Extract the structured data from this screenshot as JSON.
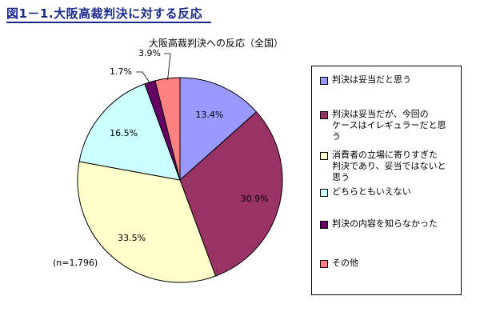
{
  "figure_title": "図1－1.大阪高裁判決に対する反応",
  "note": "(n=1,796)",
  "colors": {
    "title": "#1a2a8c",
    "slices": [
      "#9999ff",
      "#993366",
      "#ffffcc",
      "#ccffff",
      "#660066",
      "#ff8080"
    ]
  },
  "chart_data": {
    "type": "pie",
    "title": "大阪高裁判決への反応（全国）",
    "start_angle_deg": 0,
    "direction": "clockwise",
    "categories": [
      "判決は妥当だと思う",
      "判決は妥当だが、今回のケースはイレギュラーだと思う",
      "消費者の立場に寄りすぎた判決であり、妥当ではないと思う",
      "どちらともいえない",
      "判決の内容を知らなかった",
      "その他"
    ],
    "values": [
      13.4,
      30.9,
      33.5,
      16.5,
      1.7,
      3.9
    ],
    "data_labels": [
      "13.4%",
      "30.9%",
      "33.5%",
      "16.5%",
      "1.7%",
      "3.9%"
    ],
    "legend_position": "right"
  },
  "legend": {
    "items": [
      {
        "lines": [
          "判決は妥当だと思う"
        ]
      },
      {
        "lines": [
          "判決は妥当だが、今回の",
          "ケースはイレギュラーだと思",
          "う"
        ]
      },
      {
        "lines": [
          "消費者の立場に寄りすぎた",
          "判決であり、妥当ではないと",
          "思う"
        ]
      },
      {
        "lines": [
          "どちらともいえない"
        ]
      },
      {
        "lines": [
          "判決の内容を知らなかった"
        ]
      },
      {
        "lines": [
          "その他"
        ]
      }
    ]
  }
}
